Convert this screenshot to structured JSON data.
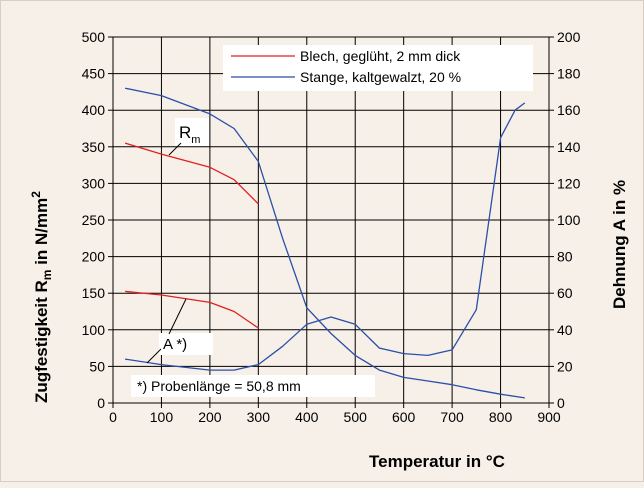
{
  "chart_data": {
    "type": "line",
    "xlabel": "Temperatur in °C",
    "ylabel_left_main": "Zugfestigkeit R",
    "ylabel_left_sub": "m",
    "ylabel_left_unit": " in N/mm",
    "ylabel_left_sup": "2",
    "ylabel_right": "Dehnung A in %",
    "xlim": [
      0,
      900
    ],
    "ylim_left": [
      0,
      500
    ],
    "ylim_right": [
      0,
      200
    ],
    "x_ticks": [
      "0",
      "100",
      "200",
      "300",
      "400",
      "500",
      "600",
      "700",
      "800",
      "900"
    ],
    "y_ticks_left": [
      "0",
      "50",
      "100",
      "150",
      "200",
      "250",
      "300",
      "350",
      "400",
      "450",
      "500"
    ],
    "y_ticks_right": [
      "0",
      "20",
      "40",
      "60",
      "80",
      "100",
      "120",
      "140",
      "160",
      "180",
      "200"
    ],
    "grid": true,
    "legend_position": "top-right",
    "legend": [
      {
        "label": "Blech, geglüht, 2 mm dick",
        "color": "#e02020"
      },
      {
        "label": "Stange, kaltgewalzt, 20 %",
        "color": "#2a4fa8"
      }
    ],
    "annotations": {
      "rm_main": "R",
      "rm_sub": "m",
      "a_label": "A *)",
      "footnote": "*) Probenlänge = 50,8 mm"
    },
    "series": [
      {
        "series_group": "Blech",
        "quantity": "Rm",
        "axis": "left",
        "color": "#e02020",
        "x": [
          25,
          100,
          200,
          250,
          300
        ],
        "y": [
          355,
          340,
          322,
          305,
          272
        ]
      },
      {
        "series_group": "Blech",
        "quantity": "A",
        "axis": "right",
        "color": "#e02020",
        "x": [
          25,
          100,
          200,
          250,
          300
        ],
        "y": [
          61,
          59,
          55,
          50,
          41
        ]
      },
      {
        "series_group": "Stange",
        "quantity": "Rm",
        "axis": "left",
        "color": "#2a4fa8",
        "x": [
          25,
          100,
          200,
          250,
          300,
          350,
          400,
          450,
          500,
          550,
          600,
          650,
          700,
          750,
          800,
          850
        ],
        "y": [
          430,
          420,
          395,
          375,
          330,
          225,
          130,
          95,
          65,
          45,
          35,
          30,
          25,
          18,
          12,
          7
        ]
      },
      {
        "series_group": "Stange",
        "quantity": "A",
        "axis": "right",
        "color": "#2a4fa8",
        "x": [
          25,
          100,
          200,
          250,
          300,
          350,
          400,
          450,
          500,
          550,
          600,
          650,
          700,
          750,
          800,
          830,
          850
        ],
        "y": [
          24,
          21,
          18,
          18,
          21,
          31,
          43,
          47,
          43,
          30,
          27,
          26,
          29,
          51,
          145,
          160,
          164
        ]
      }
    ]
  }
}
